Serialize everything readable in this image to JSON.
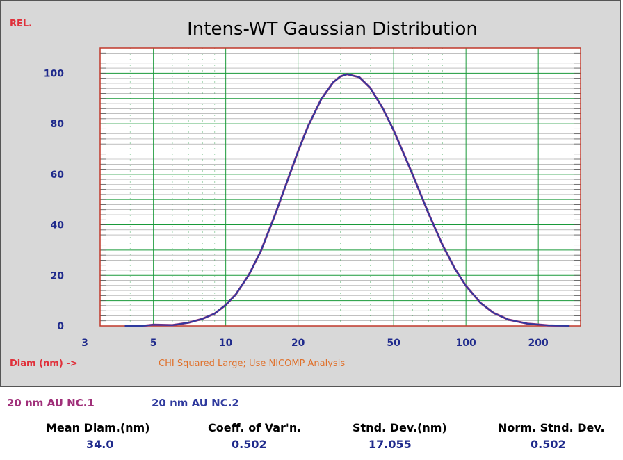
{
  "chart_data": {
    "type": "line",
    "title": "Intens-WT Gaussian Distribution",
    "y_unit_label": "REL.",
    "xlabel": "Diam (nm) ->",
    "x_scale": "log",
    "xlim": [
      3,
      300
    ],
    "ylim": [
      0,
      110
    ],
    "x_ticks": [
      3,
      5,
      10,
      20,
      50,
      100,
      200
    ],
    "x_tick_labels": [
      "3",
      "5",
      "10",
      "20",
      "50",
      "100",
      "200"
    ],
    "y_ticks": [
      0,
      20,
      40,
      60,
      80,
      100
    ],
    "y_tick_labels": [
      "0",
      "20",
      "40",
      "60",
      "80",
      "100"
    ],
    "warning": "CHI Squared Large; Use NICOMP Analysis",
    "series": [
      {
        "name": "20 nm AU NC.1",
        "color": "#a0307a",
        "x": [
          3.8,
          4.5,
          5.0,
          6.0,
          7.0,
          8.0,
          9.0,
          10.0,
          11.0,
          12.5,
          14.0,
          16.0,
          18.0,
          20.0,
          22.0,
          25.0,
          28.0,
          30.0,
          32.0,
          36.0,
          40.0,
          45.0,
          50.0,
          55.0,
          60.0,
          70.0,
          80.0,
          90.0,
          100.0,
          115.0,
          130.0,
          150.0,
          180.0,
          220.0,
          270.0
        ],
        "y": [
          0,
          0,
          0.5,
          0.3,
          1.3,
          2.8,
          4.9,
          8.3,
          12.4,
          20.3,
          29.6,
          43.7,
          57.1,
          69.1,
          79.0,
          89.8,
          96.4,
          98.7,
          99.6,
          98.4,
          94.1,
          86.2,
          77.4,
          68.3,
          59.8,
          44.3,
          31.9,
          22.6,
          15.8,
          9.1,
          5.2,
          2.5,
          0.9,
          0.2,
          0
        ]
      },
      {
        "name": "20 nm AU NC.2",
        "color": "#2f3a9e",
        "x": [
          3.8,
          4.5,
          5.0,
          6.0,
          7.0,
          8.0,
          9.0,
          10.0,
          11.0,
          12.5,
          14.0,
          16.0,
          18.0,
          20.0,
          22.0,
          25.0,
          28.0,
          30.0,
          32.0,
          36.0,
          40.0,
          45.0,
          50.0,
          55.0,
          60.0,
          70.0,
          80.0,
          90.0,
          100.0,
          115.0,
          130.0,
          150.0,
          180.0,
          220.0,
          270.0
        ],
        "y": [
          0,
          0,
          0.5,
          0.3,
          1.3,
          2.8,
          4.9,
          8.3,
          12.4,
          20.3,
          29.6,
          43.7,
          57.1,
          69.1,
          79.0,
          89.8,
          96.4,
          98.7,
          99.6,
          98.4,
          94.1,
          86.2,
          77.4,
          68.3,
          59.8,
          44.3,
          31.9,
          22.6,
          15.8,
          9.1,
          5.2,
          2.5,
          0.9,
          0.2,
          0
        ]
      }
    ]
  },
  "legend": {
    "series1": {
      "label": "20 nm AU NC.1",
      "color": "#a0307a"
    },
    "series2": {
      "label": "20 nm AU NC.2",
      "color": "#2f3a9e"
    }
  },
  "stats": {
    "mean_diam": {
      "label": "Mean Diam.(nm)",
      "value": "34.0"
    },
    "coeff_var": {
      "label": "Coeff. of Var'n.",
      "value": "0.502"
    },
    "stnd_dev": {
      "label": "Stnd. Dev.(nm)",
      "value": "17.055"
    },
    "norm_stnd_dev": {
      "label": "Norm. Stnd. Dev.",
      "value": "0.502"
    }
  },
  "colors": {
    "frame_bg": "#d8d8d8",
    "plot_bg": "#ffffff",
    "plot_border": "#c0392b",
    "grid_major": "#1a9a3a",
    "grid_minor": "#9a9a9a",
    "axis_text": "#1f2a8c",
    "label_red": "#e0303a",
    "warning_orange": "#e0702a"
  }
}
